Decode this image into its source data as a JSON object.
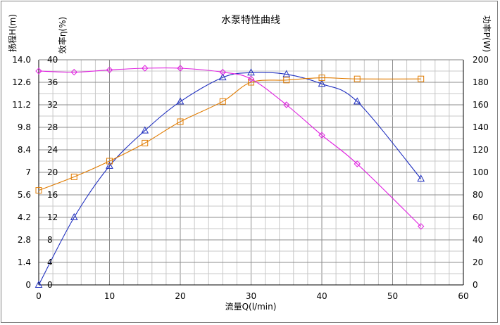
{
  "chart_data": {
    "type": "line",
    "title": "水泵特性曲线",
    "xlabel": "流量Q(l/min)",
    "ylabel_head": "扬程H(m)",
    "ylabel_eff": "效率η(%)",
    "ylabel_power": "功率P(W)",
    "xlim": [
      0,
      60
    ],
    "x_ticks": [
      "0",
      "10",
      "20",
      "30",
      "40",
      "50",
      "60"
    ],
    "head_axis": {
      "range": [
        0,
        14
      ],
      "ticks": [
        "0",
        "1.4",
        "2.8",
        "4.2",
        "5.6",
        "7",
        "8.4",
        "9.8",
        "11.2",
        "12.6",
        "14.0"
      ]
    },
    "eff_axis": {
      "range": [
        0,
        40
      ],
      "ticks": [
        "0",
        "4",
        "8",
        "12",
        "16",
        "20",
        "24",
        "28",
        "32",
        "36",
        "40"
      ]
    },
    "power_axis": {
      "range": [
        0,
        200
      ],
      "ticks": [
        "0",
        "20",
        "40",
        "60",
        "80",
        "100",
        "120",
        "140",
        "160",
        "180",
        "200"
      ]
    },
    "grid": true,
    "series": [
      {
        "key": "head",
        "axis": "head",
        "color": "#1f2fbf",
        "marker": "triangle",
        "points": [
          [
            0,
            0
          ],
          [
            5,
            4.2
          ],
          [
            10,
            7.4
          ],
          [
            15,
            9.6
          ],
          [
            20,
            11.4
          ],
          [
            26,
            12.9
          ],
          [
            30,
            13.2
          ],
          [
            35,
            13.1
          ],
          [
            40,
            12.5
          ],
          [
            45,
            11.4
          ],
          [
            54,
            6.6
          ]
        ]
      },
      {
        "key": "power",
        "axis": "power",
        "color": "#e07b00",
        "marker": "square",
        "points": [
          [
            0,
            84
          ],
          [
            5,
            96
          ],
          [
            10,
            110
          ],
          [
            15,
            126
          ],
          [
            20,
            145
          ],
          [
            26,
            163
          ],
          [
            30,
            180
          ],
          [
            35,
            182
          ],
          [
            40,
            184
          ],
          [
            45,
            183
          ],
          [
            54,
            183
          ]
        ]
      },
      {
        "key": "efficiency",
        "axis": "eff",
        "color": "#e020e0",
        "marker": "diamond",
        "points": [
          [
            0,
            38
          ],
          [
            5,
            37.8
          ],
          [
            10,
            38.2
          ],
          [
            15,
            38.5
          ],
          [
            20,
            38.5
          ],
          [
            26,
            37.8
          ],
          [
            30,
            36.6
          ],
          [
            35,
            32
          ],
          [
            40,
            26.6
          ],
          [
            45,
            21.5
          ],
          [
            54,
            10.4
          ]
        ]
      }
    ]
  }
}
